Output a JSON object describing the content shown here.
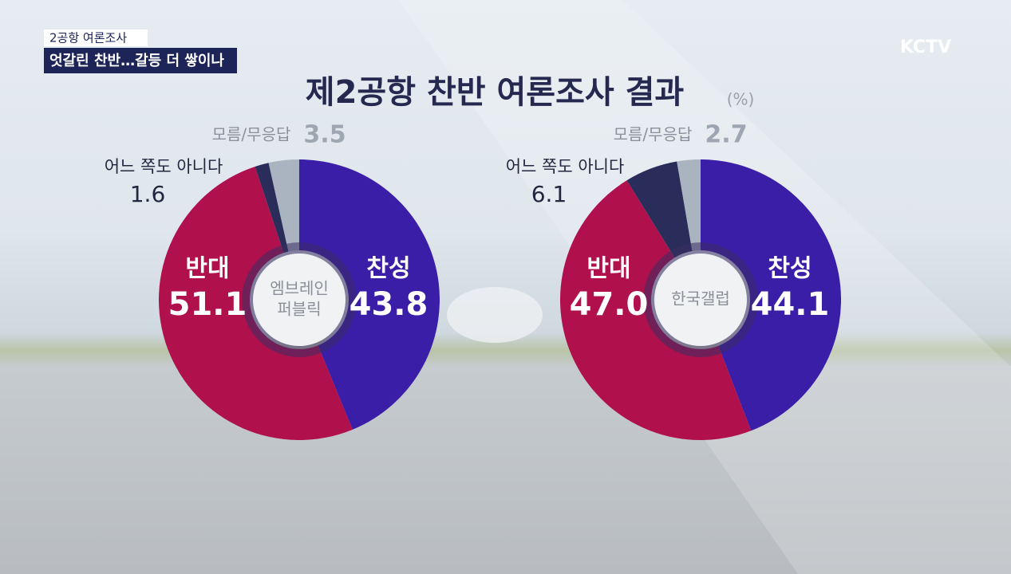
{
  "caption": "2공항 여론조사",
  "headline": "엇갈린 찬반…갈등 더 쌓이나",
  "logo": "KCTV",
  "title": "제2공항 찬반 여론조사 결과",
  "unit": "(%)",
  "chart_data": [
    {
      "type": "donut",
      "center_label": [
        "엠브레인",
        "퍼블릭"
      ],
      "categories": [
        "찬성",
        "반대",
        "어느 쪽도 아니다",
        "모름/무응답"
      ],
      "values": [
        43.8,
        51.1,
        1.6,
        3.5
      ],
      "colors": [
        "#3a1ea8",
        "#b0104c",
        "#2a2d5a",
        "#aab3c0"
      ]
    },
    {
      "type": "donut",
      "center_label": [
        "한국갤럽"
      ],
      "categories": [
        "찬성",
        "반대",
        "어느 쪽도 아니다",
        "모름/무응답"
      ],
      "values": [
        44.1,
        47.0,
        6.1,
        2.7
      ],
      "value_labels": [
        "44.1",
        "47.0",
        "6.1",
        "2.7"
      ],
      "colors": [
        "#3a1ea8",
        "#b0104c",
        "#2a2d5a",
        "#aab3c0"
      ]
    }
  ]
}
